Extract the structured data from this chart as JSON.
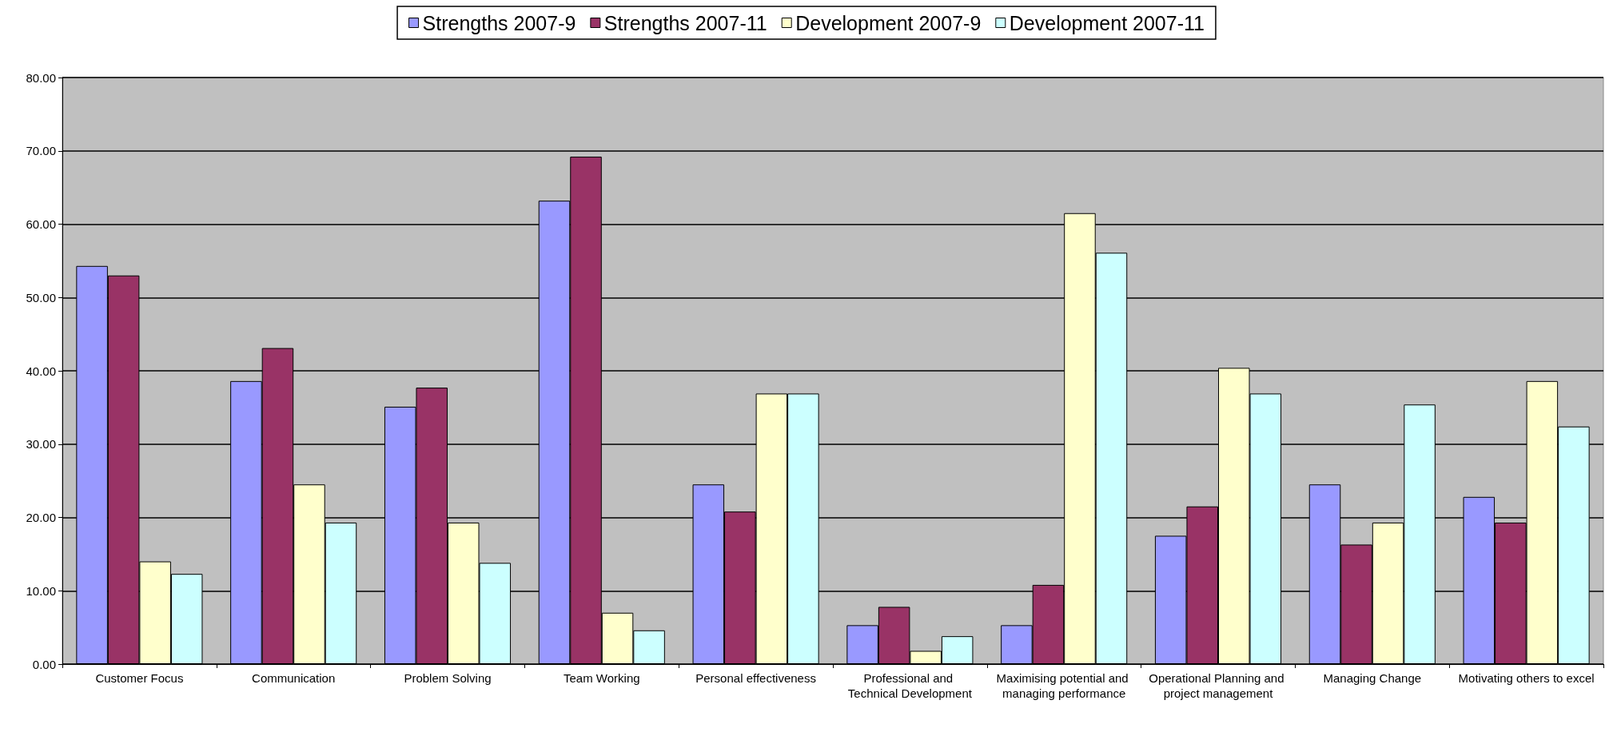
{
  "chart_data": {
    "type": "bar",
    "categories": [
      "Customer Focus",
      "Communication",
      "Problem Solving",
      "Team Working",
      "Personal effectiveness",
      "Professional and Technical Development",
      "Maximising potential and managing performance",
      "Operational Planning and project management",
      "Managing Change",
      "Motivating others to excel"
    ],
    "series": [
      {
        "name": "Strengths 2007-9",
        "color": "#9999ff",
        "values": [
          54.3,
          38.6,
          35.1,
          63.2,
          24.5,
          5.3,
          5.3,
          17.5,
          24.5,
          22.8
        ]
      },
      {
        "name": "Strengths 2007-11",
        "color": "#993366",
        "values": [
          53.0,
          43.1,
          37.7,
          69.2,
          20.8,
          7.8,
          10.8,
          21.5,
          16.3,
          19.3
        ]
      },
      {
        "name": "Development 2007-9",
        "color": "#ffffcc",
        "values": [
          14.0,
          24.5,
          19.3,
          7.0,
          36.9,
          1.8,
          61.5,
          40.4,
          19.3,
          38.6
        ]
      },
      {
        "name": "Development 2007-11",
        "color": "#ccffff",
        "values": [
          12.3,
          19.3,
          13.8,
          4.6,
          36.9,
          3.8,
          56.1,
          36.9,
          35.4,
          32.4
        ]
      }
    ],
    "ylim": [
      0,
      80
    ],
    "yticks": [
      {
        "value": 0,
        "label": "0.00"
      },
      {
        "value": 10,
        "label": "10.00"
      },
      {
        "value": 20,
        "label": "20.00"
      },
      {
        "value": 30,
        "label": "30.00"
      },
      {
        "value": 40,
        "label": "40.00"
      },
      {
        "value": 50,
        "label": "50.00"
      },
      {
        "value": 60,
        "label": "60.00"
      },
      {
        "value": 70,
        "label": "70.00"
      },
      {
        "value": 80,
        "label": "80.00"
      }
    ],
    "grid": "y",
    "legend": "top"
  }
}
